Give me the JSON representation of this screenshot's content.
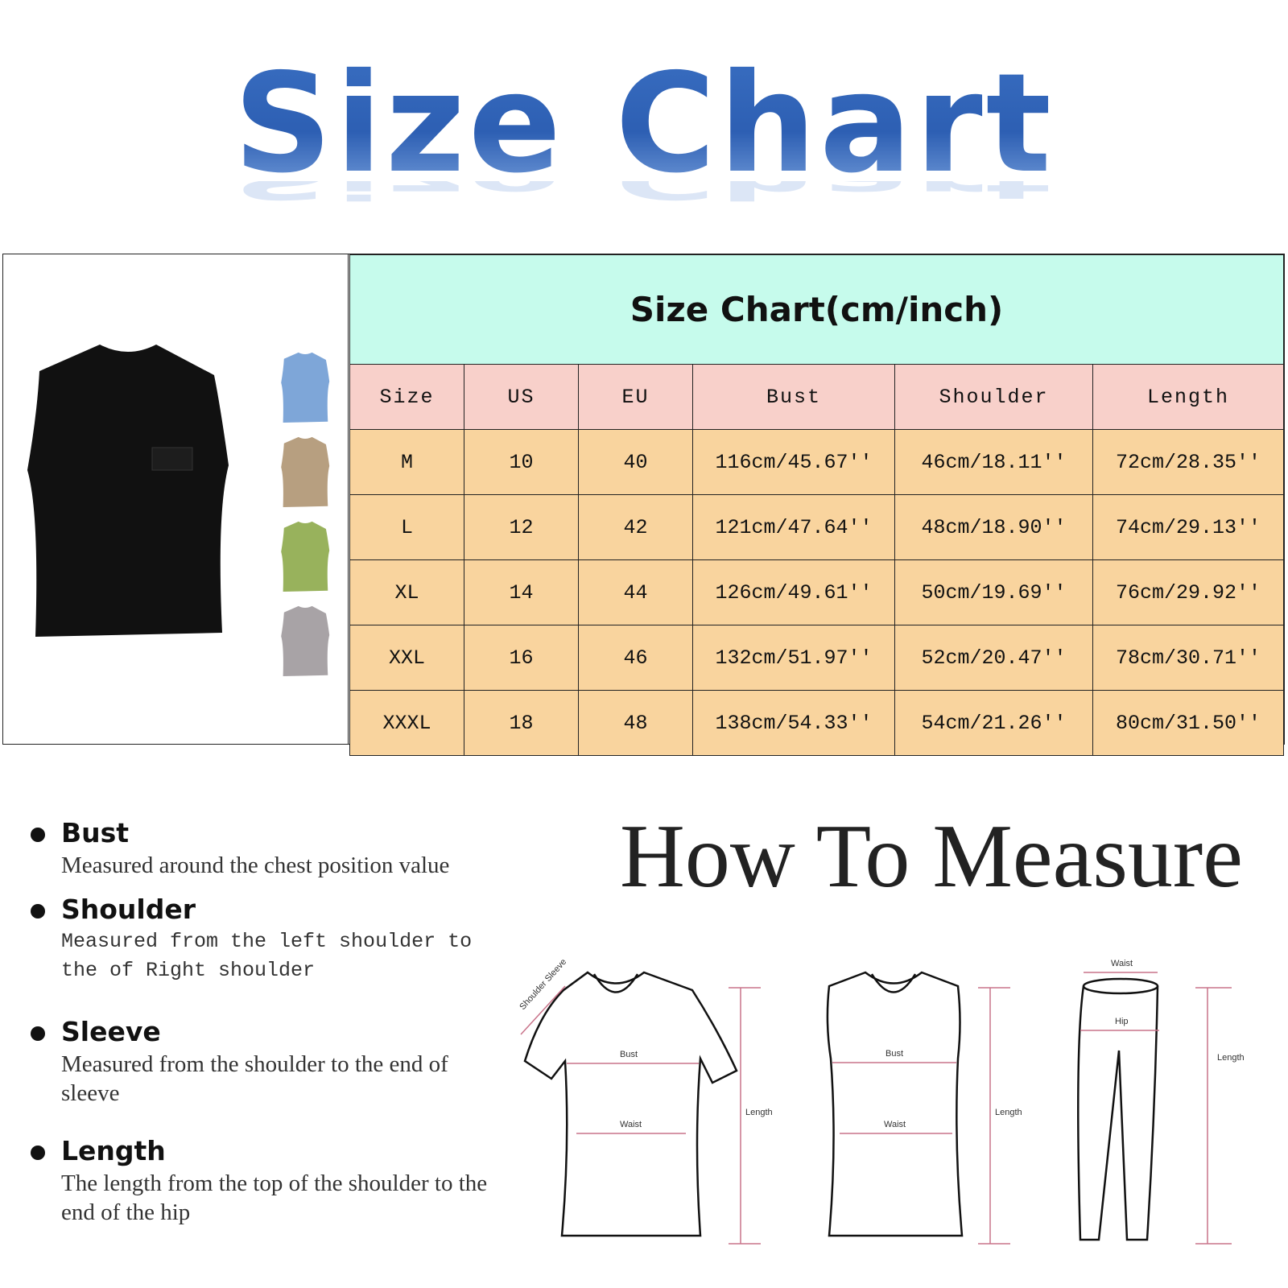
{
  "title": "Size Chart",
  "table": {
    "title": "Size Chart(cm/inch)",
    "columns": [
      "Size",
      "US",
      "EU",
      "Bust",
      "Shoulder",
      "Length"
    ],
    "rows": [
      [
        "M",
        "10",
        "40",
        "116cm/45.67''",
        "46cm/18.11''",
        "72cm/28.35''"
      ],
      [
        "L",
        "12",
        "42",
        "121cm/47.64''",
        "48cm/18.90''",
        "74cm/29.13''"
      ],
      [
        "XL",
        "14",
        "44",
        "126cm/49.61''",
        "50cm/19.69''",
        "76cm/29.92''"
      ],
      [
        "XXL",
        "16",
        "46",
        "132cm/51.97''",
        "52cm/20.47''",
        "78cm/30.71''"
      ],
      [
        "XXXL",
        "18",
        "48",
        "138cm/54.33''",
        "54cm/21.26''",
        "80cm/31.50''"
      ]
    ]
  },
  "product_colors": {
    "main": "#111111",
    "variants": [
      "#7ea6d8",
      "#b79f80",
      "#98b25c",
      "#a8a3a6"
    ]
  },
  "colors": {
    "title_blue": "#2f62b6",
    "header_bg": "#c6fbec",
    "column_header_bg": "#f8d0ca",
    "row_bg": "#f9d49e",
    "measure_line": "#c9738a"
  },
  "guide": [
    {
      "heading": "Bust",
      "text": "Measured around the chest position value"
    },
    {
      "heading": "Shoulder",
      "text": "Measured from the left shoulder to the of Right shoulder"
    },
    {
      "heading": "Sleeve",
      "text": "Measured from the shoulder to the end of sleeve"
    },
    {
      "heading": "Length",
      "text": "The length from the top of the shoulder to the end of the hip"
    }
  ],
  "how_to": {
    "title": "How To Measure",
    "labels": {
      "shoulder_sleeve": "Shoulder Sleeve",
      "bust": "Bust",
      "waist": "Waist",
      "length": "Length",
      "hip": "Hip"
    }
  }
}
